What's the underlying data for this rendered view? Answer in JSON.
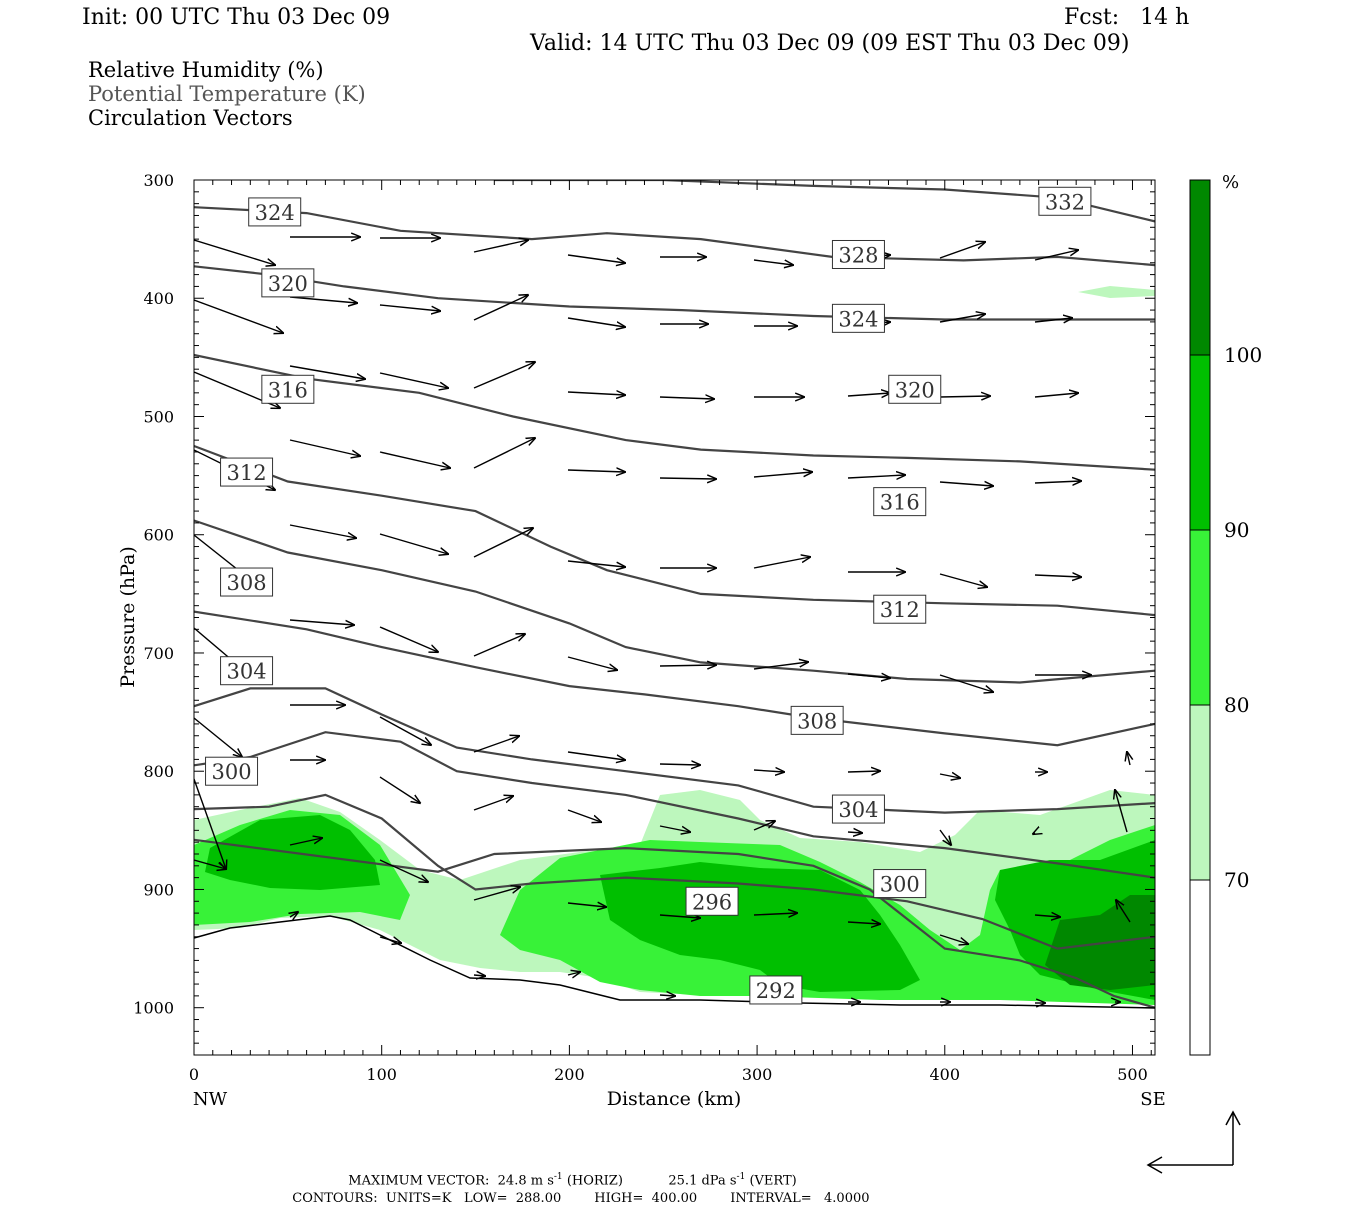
{
  "header": {
    "init": "Init: 00 UTC Thu 03 Dec 09",
    "fcst": "Fcst:   14 h",
    "valid": "Valid: 14 UTC Thu 03 Dec 09 (09 EST Thu 03 Dec 09)"
  },
  "legend": {
    "rh": "Relative Humidity (%)",
    "theta": "Potential Temperature (K)",
    "vectors": "Circulation Vectors"
  },
  "colors": {
    "rh70": "#bdf7bd",
    "rh80": "#38f238",
    "rh90": "#00bf00",
    "rh100": "#008800",
    "contour": "#444444",
    "terrain": "#000000"
  },
  "chart_data": {
    "type": "cross-section",
    "xlabel": "Distance (km)",
    "ylabel": "Pressure (hPa)",
    "x_ticks": [
      0,
      100,
      200,
      300,
      400,
      500
    ],
    "x_tick_labels": [
      "0",
      "100",
      "200",
      "300",
      "400",
      "500"
    ],
    "xlim": [
      0,
      512
    ],
    "y_ticks": [
      300,
      400,
      500,
      600,
      700,
      800,
      900,
      1000
    ],
    "y_tick_labels": [
      "300",
      "400",
      "500",
      "600",
      "700",
      "800",
      "900",
      "1000"
    ],
    "ylim": [
      300,
      1040
    ],
    "end_labels": {
      "left": "NW",
      "right": "SE"
    },
    "colorbar": {
      "unit": "%",
      "levels": [
        70,
        80,
        90,
        100
      ],
      "level_labels": [
        "70",
        "80",
        "90",
        "100"
      ]
    },
    "theta_contours": [
      {
        "label": "332",
        "value": 332,
        "label_at": [
          464,
          318
        ],
        "points": [
          [
            160,
            300
          ],
          [
            250,
            300
          ],
          [
            330,
            305
          ],
          [
            400,
            308
          ],
          [
            460,
            315
          ],
          [
            512,
            335
          ]
        ]
      },
      {
        "label": "328",
        "value": 328,
        "label_at": [
          354,
          363
        ],
        "points": [
          [
            0,
            323
          ],
          [
            60,
            328
          ],
          [
            110,
            343
          ],
          [
            180,
            350
          ],
          [
            220,
            345
          ],
          [
            270,
            350
          ],
          [
            340,
            365
          ],
          [
            410,
            368
          ],
          [
            460,
            365
          ],
          [
            512,
            372
          ]
        ]
      },
      {
        "label": "324",
        "value": 324,
        "label_at": [
          354,
          417
        ],
        "points": [
          [
            0,
            373
          ],
          [
            40,
            380
          ],
          [
            80,
            390
          ],
          [
            130,
            400
          ],
          [
            200,
            407
          ],
          [
            260,
            410
          ],
          [
            330,
            415
          ],
          [
            400,
            418
          ],
          [
            460,
            418
          ],
          [
            512,
            418
          ]
        ]
      },
      {
        "label": "324",
        "value": 324,
        "label_at": [
          43,
          327
        ],
        "points": []
      },
      {
        "label": "320",
        "value": 320,
        "label_at": [
          50,
          387
        ],
        "points": [
          [
            0,
            448
          ],
          [
            60,
            468
          ],
          [
            120,
            480
          ],
          [
            170,
            500
          ],
          [
            230,
            520
          ],
          [
            270,
            528
          ],
          [
            330,
            533
          ],
          [
            380,
            535
          ],
          [
            440,
            538
          ],
          [
            512,
            545
          ]
        ]
      },
      {
        "label": "320",
        "value": 320,
        "label_at": [
          384,
          477
        ],
        "points": []
      },
      {
        "label": "316",
        "value": 316,
        "label_at": [
          50,
          477
        ],
        "points": [
          [
            0,
            525
          ],
          [
            50,
            555
          ],
          [
            100,
            567
          ],
          [
            150,
            580
          ],
          [
            190,
            610
          ],
          [
            220,
            630
          ],
          [
            270,
            650
          ],
          [
            330,
            655
          ],
          [
            400,
            658
          ],
          [
            460,
            660
          ],
          [
            512,
            668
          ]
        ]
      },
      {
        "label": "316",
        "value": 316,
        "label_at": [
          376,
          572
        ],
        "points": []
      },
      {
        "label": "312",
        "value": 312,
        "label_at": [
          28,
          547
        ],
        "points": [
          [
            0,
            588
          ],
          [
            50,
            615
          ],
          [
            100,
            630
          ],
          [
            150,
            648
          ],
          [
            200,
            675
          ],
          [
            230,
            695
          ],
          [
            270,
            708
          ],
          [
            330,
            715
          ],
          [
            380,
            722
          ],
          [
            440,
            725
          ],
          [
            512,
            715
          ]
        ]
      },
      {
        "label": "312",
        "value": 312,
        "label_at": [
          376,
          663
        ],
        "points": []
      },
      {
        "label": "308",
        "value": 308,
        "label_at": [
          28,
          640
        ],
        "points": [
          [
            0,
            665
          ],
          [
            60,
            680
          ],
          [
            100,
            695
          ],
          [
            150,
            712
          ],
          [
            200,
            728
          ],
          [
            240,
            735
          ],
          [
            290,
            745
          ],
          [
            330,
            755
          ],
          [
            400,
            768
          ],
          [
            460,
            778
          ],
          [
            512,
            760
          ]
        ]
      },
      {
        "label": "308",
        "value": 308,
        "label_at": [
          332,
          757
        ],
        "points": []
      },
      {
        "label": "304",
        "value": 304,
        "label_at": [
          28,
          715
        ],
        "points": [
          [
            0,
            745
          ],
          [
            30,
            730
          ],
          [
            70,
            730
          ],
          [
            100,
            752
          ],
          [
            140,
            780
          ],
          [
            180,
            790
          ],
          [
            230,
            800
          ],
          [
            290,
            812
          ],
          [
            330,
            830
          ],
          [
            400,
            835
          ],
          [
            460,
            832
          ],
          [
            512,
            827
          ]
        ]
      },
      {
        "label": "304",
        "value": 304,
        "label_at": [
          354,
          832
        ],
        "points": []
      },
      {
        "label": "300",
        "value": 300,
        "label_at": [
          20,
          800
        ],
        "points": [
          [
            0,
            795
          ],
          [
            30,
            788
          ],
          [
            70,
            767
          ],
          [
            110,
            775
          ],
          [
            140,
            800
          ],
          [
            180,
            810
          ],
          [
            230,
            820
          ],
          [
            290,
            840
          ],
          [
            330,
            855
          ],
          [
            400,
            865
          ],
          [
            460,
            878
          ],
          [
            512,
            890
          ]
        ]
      },
      {
        "label": "300",
        "value": 300,
        "label_at": [
          376,
          895
        ],
        "points": []
      },
      {
        "label": "296",
        "value": 296,
        "label_at": [
          276,
          910
        ],
        "points": [
          [
            0,
            832
          ],
          [
            40,
            830
          ],
          [
            70,
            820
          ],
          [
            100,
            840
          ],
          [
            130,
            880
          ],
          [
            150,
            900
          ],
          [
            180,
            895
          ],
          [
            230,
            890
          ],
          [
            290,
            895
          ],
          [
            330,
            900
          ],
          [
            380,
            910
          ],
          [
            420,
            925
          ],
          [
            460,
            950
          ],
          [
            512,
            940
          ]
        ]
      },
      {
        "label": "292",
        "value": 292,
        "label_at": [
          310,
          985
        ],
        "points": [
          [
            0,
            858
          ],
          [
            130,
            885
          ],
          [
            160,
            870
          ],
          [
            230,
            865
          ],
          [
            290,
            870
          ],
          [
            330,
            880
          ],
          [
            360,
            900
          ],
          [
            380,
            925
          ],
          [
            400,
            950
          ],
          [
            440,
            960
          ],
          [
            470,
            975
          ],
          [
            490,
            990
          ],
          [
            512,
            1000
          ]
        ]
      }
    ],
    "max_vector": {
      "horizontal": "24.8",
      "horizontal_unit": "m s",
      "horizontal_exp": "-1",
      "horizontal_tag": "(HORIZ)",
      "vertical": "25.1",
      "vertical_unit": "dPa s",
      "vertical_exp": "-1",
      "vertical_tag": "(VERT)",
      "label": "MAXIMUM VECTOR:"
    },
    "contours_info": {
      "label": "CONTOURS:",
      "units": "UNITS=K",
      "low": "LOW=  288.00",
      "high": "HIGH=  400.00",
      "interval": "INTERVAL=   4.0000"
    }
  }
}
